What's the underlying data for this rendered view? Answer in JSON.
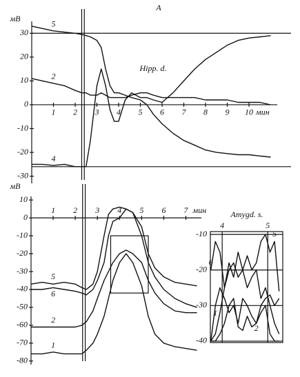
{
  "chart_data": [
    {
      "type": "line",
      "title": "A",
      "annotation": "Hipp. d.",
      "ylabel": "мВ",
      "xlabel": "мин",
      "x": [
        0,
        0.5,
        1,
        1.5,
        2,
        2.3,
        2.5,
        2.7,
        3,
        3.2,
        3.4,
        3.6,
        3.8,
        4,
        4.3,
        4.6,
        5,
        5.3,
        5.6,
        6,
        6.5,
        7,
        7.5,
        8,
        8.5,
        9,
        9.5,
        10,
        10.5,
        11
      ],
      "series": [
        {
          "name": "5",
          "color": "#111111",
          "values": [
            33,
            32,
            31,
            30.5,
            30,
            29.5,
            29,
            28.5,
            27,
            24,
            15,
            8,
            5,
            5,
            4,
            3,
            2,
            0,
            -4,
            -8,
            -12,
            -15,
            -17,
            -19,
            -20,
            -20.5,
            -21,
            -21,
            -21.5,
            -22
          ]
        },
        {
          "name": "2",
          "color": "#111111",
          "values": [
            11,
            10,
            9,
            8,
            6,
            5,
            5,
            4,
            4,
            5,
            4,
            3,
            3,
            3,
            3,
            4,
            5,
            5,
            4,
            3,
            3,
            3,
            3,
            2,
            2,
            2,
            1,
            1,
            1,
            0
          ]
        },
        {
          "name": "4",
          "color": "#111111",
          "values": [
            -25,
            -25,
            -25.5,
            -25,
            -26,
            -26,
            -26,
            -15,
            8,
            15,
            8,
            -2,
            -7,
            -7,
            2,
            5,
            3,
            3,
            2,
            1,
            5,
            10,
            15,
            19,
            22,
            25,
            27,
            28,
            28.5,
            29
          ]
        }
      ],
      "xlim": [
        0,
        11.3
      ],
      "ylim": [
        -33,
        35
      ],
      "xticks": [
        1,
        2,
        3,
        4,
        5,
        6,
        7,
        8,
        9,
        10
      ],
      "yticks": [
        30,
        20,
        10,
        0,
        -10,
        -20,
        -30
      ],
      "hlines": [
        30,
        -26
      ],
      "vlines": [
        2.3,
        2.42
      ]
    },
    {
      "type": "line",
      "ylabel": "мВ",
      "xlabel": "мин",
      "x": [
        0,
        0.5,
        1,
        1.5,
        2,
        2.3,
        2.5,
        2.8,
        3,
        3.3,
        3.5,
        3.7,
        4,
        4.3,
        4.6,
        5,
        5.3,
        5.6,
        6,
        6.5,
        7,
        7.5
      ],
      "series": [
        {
          "name": "5",
          "color": "#111111",
          "values": [
            -37,
            -36,
            -37,
            -36,
            -37,
            -39,
            -40,
            -37,
            -30,
            -10,
            2,
            5,
            6,
            5,
            3,
            -5,
            -20,
            -28,
            -33,
            -36,
            -37,
            -38
          ]
        },
        {
          "name": "6",
          "color": "#111111",
          "values": [
            -40,
            -40,
            -39,
            -40,
            -41,
            -42,
            -43,
            -40,
            -35,
            -25,
            -10,
            -2,
            0,
            5,
            3,
            -10,
            -25,
            -33,
            -40,
            -45,
            -48,
            -50
          ]
        },
        {
          "name": "2",
          "color": "#111111",
          "values": [
            -61,
            -61,
            -61,
            -61,
            -61,
            -60,
            -58,
            -52,
            -45,
            -35,
            -30,
            -25,
            -20,
            -18,
            -20,
            -25,
            -35,
            -42,
            -48,
            -52,
            -53,
            -53
          ]
        },
        {
          "name": "1",
          "color": "#111111",
          "values": [
            -76,
            -76,
            -75,
            -76,
            -76,
            -76,
            -74,
            -70,
            -65,
            -55,
            -45,
            -35,
            -25,
            -20,
            -25,
            -38,
            -55,
            -65,
            -70,
            -72,
            -73,
            -74
          ]
        }
      ],
      "xlim": [
        0,
        7.7
      ],
      "ylim": [
        -82,
        12
      ],
      "xticks": [
        1,
        2,
        3,
        4,
        5,
        6,
        7
      ],
      "yticks": [
        10,
        0,
        -10,
        -20,
        -30,
        -40,
        -50,
        -60,
        -70,
        -80
      ],
      "vlines": [
        2.33,
        2.45
      ],
      "zoom_box": {
        "xlim": [
          3.6,
          5.3
        ],
        "ylim": [
          -42,
          -10
        ]
      }
    },
    {
      "type": "line",
      "title": "Amygd. s.",
      "x": [
        3.75,
        3.85,
        3.95,
        4.05,
        4.15,
        4.25,
        4.35,
        4.45,
        4.55,
        4.65,
        4.75,
        4.85,
        4.95,
        5.05,
        5.15,
        5.25
      ],
      "series": [
        {
          "name": "6",
          "color": "#111111",
          "values": [
            -20,
            -12,
            -15,
            -25,
            -18,
            -22,
            -15,
            -20,
            -25,
            -22,
            -20,
            -28,
            -25,
            -30,
            -35,
            -38
          ]
        },
        {
          "name": "5",
          "color": "#111111",
          "values": [
            -40,
            -38,
            -32,
            -25,
            -20,
            -18,
            -22,
            -20,
            -16,
            -20,
            -18,
            -12,
            -10,
            -15,
            -12,
            -26
          ]
        },
        {
          "name": "1",
          "color": "#111111",
          "values": [
            -40,
            -30,
            -25,
            -28,
            -32,
            -30,
            -35,
            -28,
            -30,
            -33,
            -35,
            -30,
            -28,
            -27,
            -30,
            -28
          ]
        },
        {
          "name": "2",
          "color": "#111111",
          "values": [
            -40,
            -40,
            -38,
            -35,
            -30,
            -28,
            -36,
            -37,
            -33,
            -36,
            -35,
            -32,
            -30,
            -38,
            -40,
            -40
          ]
        }
      ],
      "xlim": [
        3.74,
        5.33
      ],
      "ylim": [
        -40.4,
        -9.2
      ],
      "xticks": [
        4,
        5
      ],
      "yticks": [
        -10,
        -20,
        -30,
        -40
      ],
      "grid": true
    }
  ]
}
